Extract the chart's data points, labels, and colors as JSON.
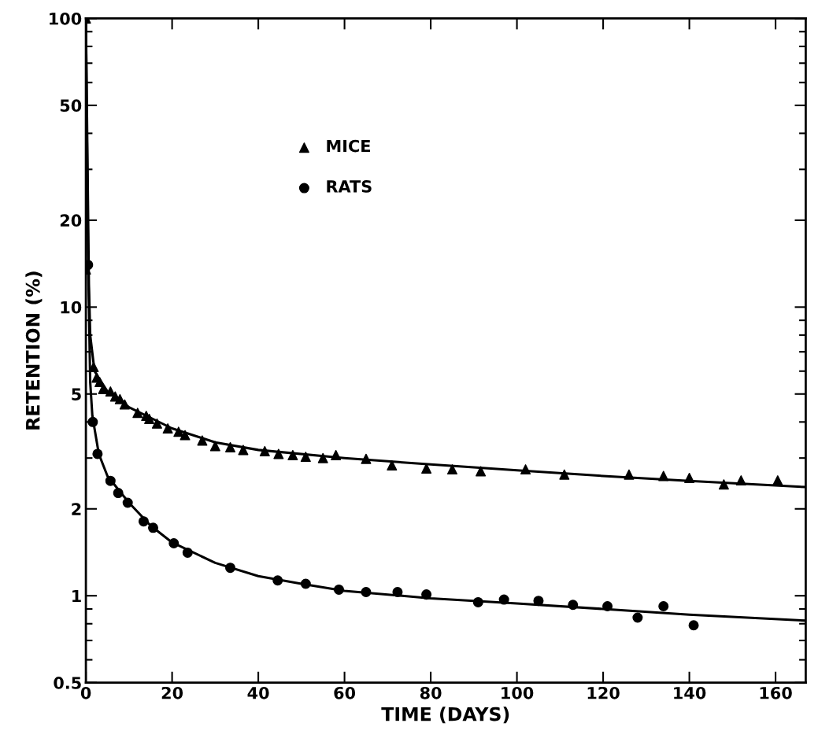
{
  "chart_data": {
    "type": "scatter",
    "xlabel": "TIME (DAYS)",
    "ylabel": "RETENTION (%)",
    "log": "y",
    "grid": false,
    "legend": "top left",
    "xlim": [
      0,
      167
    ],
    "xticks": [
      0,
      20,
      40,
      60,
      80,
      100,
      120,
      140,
      160
    ],
    "ylim": [
      0.5,
      100
    ],
    "yticks": [
      0.5,
      1,
      2,
      5,
      10,
      20,
      50,
      100
    ],
    "series": [
      {
        "name": "MICE",
        "marker": "triangle",
        "color": "#000000",
        "x": [
          0,
          0,
          1.8,
          2.5,
          3.2,
          4,
          5.7,
          6.8,
          7.9,
          9,
          12,
          14,
          14.7,
          16.5,
          19,
          21.5,
          23,
          27,
          30,
          33.5,
          36.5,
          41.5,
          44.7,
          48,
          51,
          55,
          58,
          65,
          71,
          79,
          85,
          91.6,
          102,
          111,
          126,
          134,
          140,
          148,
          152,
          160.5
        ],
        "values": [
          100,
          13.5,
          6.2,
          5.7,
          5.5,
          5.2,
          5.1,
          4.9,
          4.8,
          4.6,
          4.3,
          4.2,
          4.1,
          3.95,
          3.8,
          3.7,
          3.6,
          3.45,
          3.3,
          3.27,
          3.2,
          3.17,
          3.1,
          3.07,
          3.03,
          3.0,
          3.07,
          2.98,
          2.83,
          2.76,
          2.74,
          2.7,
          2.74,
          2.63,
          2.63,
          2.6,
          2.56,
          2.43,
          2.51,
          2.51
        ]
      },
      {
        "name": "RATS",
        "marker": "circle",
        "color": "#000000",
        "x": [
          0.5,
          1.6,
          2.7,
          5.7,
          7.5,
          9.7,
          13.4,
          15.6,
          20.4,
          23.6,
          33.5,
          44.5,
          51,
          58.7,
          65,
          72.3,
          79,
          91,
          97,
          105,
          113,
          121,
          128,
          134,
          141
        ],
        "values": [
          14,
          4.0,
          3.1,
          2.5,
          2.27,
          2.1,
          1.81,
          1.72,
          1.52,
          1.41,
          1.25,
          1.13,
          1.1,
          1.05,
          1.03,
          1.03,
          1.01,
          0.95,
          0.97,
          0.96,
          0.93,
          0.92,
          0.84,
          0.92,
          0.79
        ]
      },
      {
        "type": "line",
        "marker": "none",
        "line_style": "solid",
        "color": "#000000",
        "x": [
          0,
          0.3,
          0.7,
          1,
          2,
          5,
          10,
          20,
          30,
          40,
          60,
          80,
          100,
          120,
          140,
          167
        ],
        "values": [
          100,
          40,
          12,
          8,
          6.0,
          5.1,
          4.5,
          3.8,
          3.4,
          3.2,
          3.0,
          2.85,
          2.72,
          2.6,
          2.5,
          2.38
        ]
      },
      {
        "type": "line",
        "marker": "none",
        "line_style": "solid",
        "color": "#000000",
        "x": [
          0,
          0.5,
          1,
          1.5,
          3,
          5,
          10,
          15,
          20,
          30,
          40,
          50,
          60,
          80,
          100,
          120,
          140,
          167
        ],
        "values": [
          100,
          15,
          5.5,
          4.2,
          3.1,
          2.6,
          2.1,
          1.75,
          1.53,
          1.3,
          1.17,
          1.1,
          1.04,
          0.98,
          0.94,
          0.9,
          0.86,
          0.82
        ]
      }
    ]
  }
}
